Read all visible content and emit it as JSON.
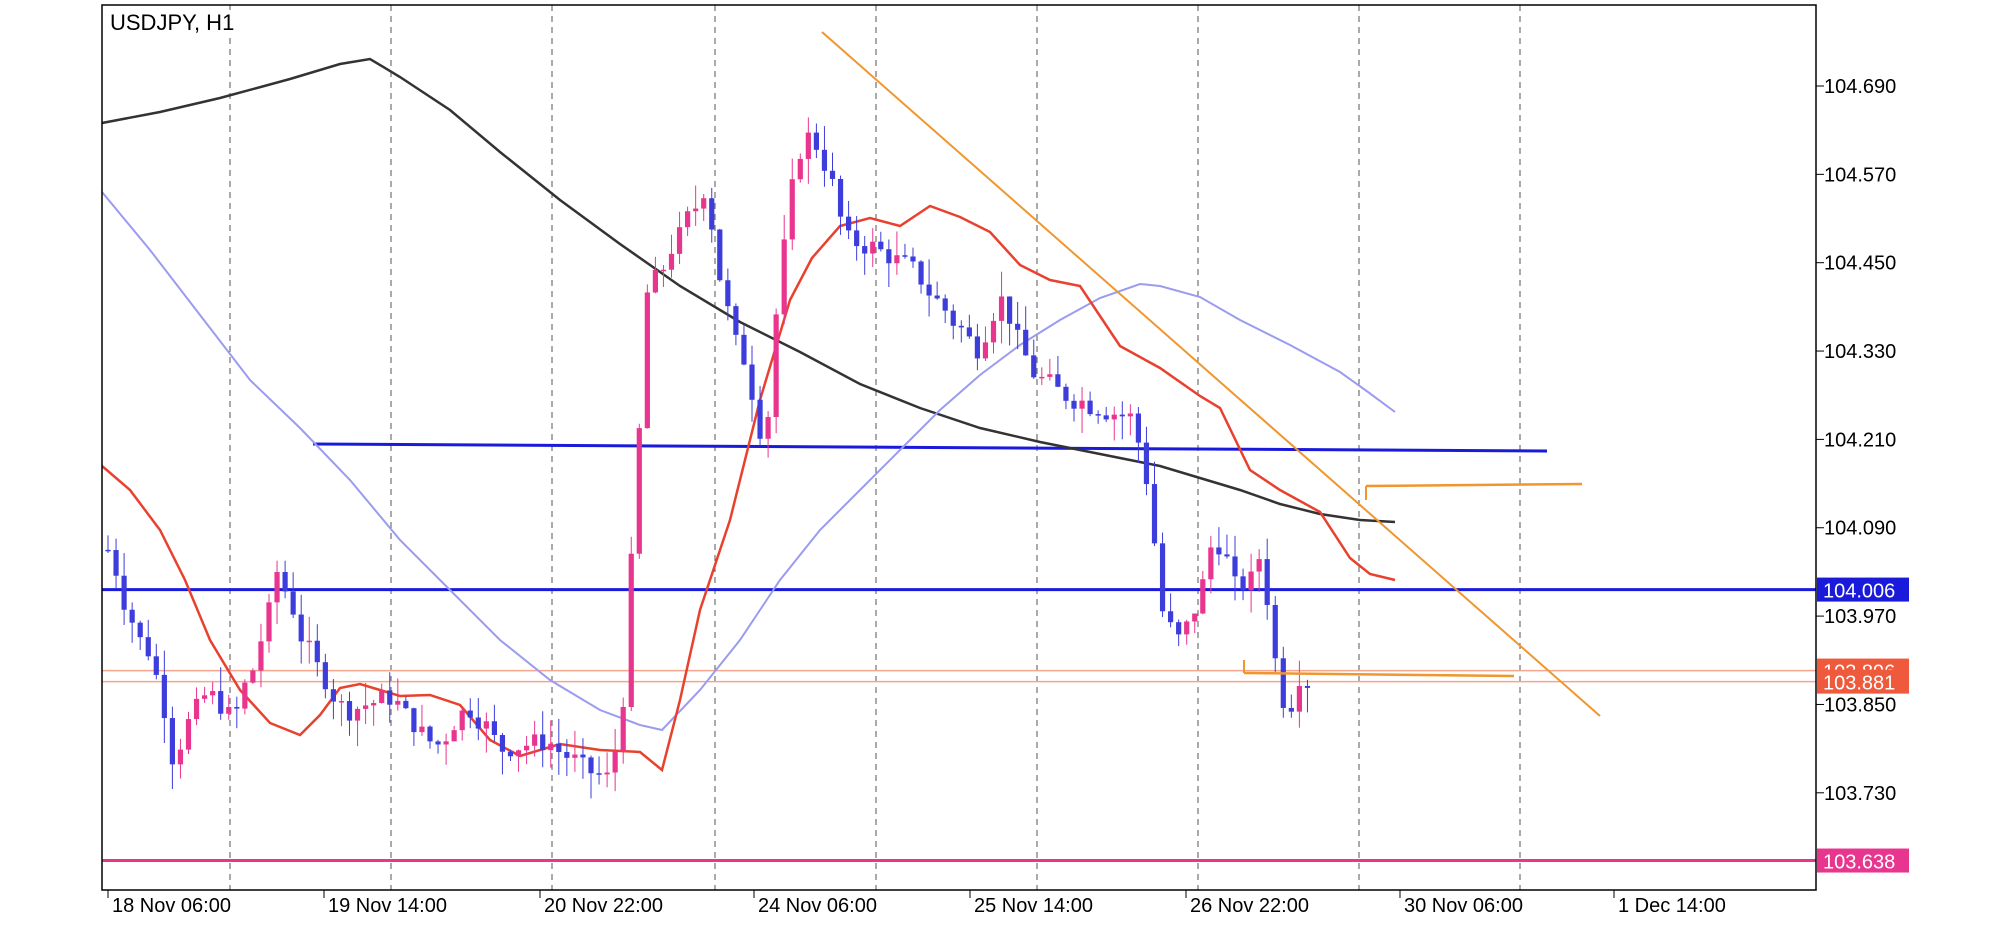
{
  "chart_data": {
    "type": "candlestick",
    "title": "USDJPY, H1",
    "symbol": "USDJPY",
    "timeframe": "H1",
    "y_ticks": [
      104.69,
      104.57,
      104.45,
      104.33,
      104.21,
      104.09,
      103.97,
      103.85,
      103.73
    ],
    "y_tick_labels": [
      "104.690",
      "104.570",
      "104.450",
      "104.330",
      "104.210",
      "104.090",
      "103.970",
      "103.850",
      "103.730"
    ],
    "ylim": [
      103.625,
      104.8
    ],
    "x_tick_labels": [
      "18 Nov 06:00",
      "19 Nov 14:00",
      "20 Nov 22:00",
      "24 Nov 06:00",
      "25 Nov 14:00",
      "26 Nov 22:00",
      "30 Nov 06:00",
      "1 Dec 14:00"
    ],
    "grid": "vertical-dashed",
    "price_labels": [
      {
        "value": 104.006,
        "text": "104.006",
        "color": "#1a1adb",
        "text_color": "#ffffff"
      },
      {
        "value": 103.896,
        "text": "103.896",
        "color": "#f05a3c",
        "text_color": "#ffffff"
      },
      {
        "value": 103.881,
        "text": "103.881",
        "color": "#f05a3c",
        "text_color": "#ffffff"
      },
      {
        "value": 103.638,
        "text": "103.638",
        "color": "#e8368f",
        "text_color": "#ffffff"
      }
    ],
    "horizontal_lines": [
      {
        "value": 104.006,
        "color": "#1a1adb",
        "full_width": true
      },
      {
        "value": 103.638,
        "color": "#e8368f",
        "full_width": true
      },
      {
        "value": 103.896,
        "color": "#f5a58e",
        "full_width": true
      },
      {
        "value": 103.881,
        "color": "#f5a58e",
        "full_width": true
      }
    ],
    "colors": {
      "bull": "#e8368f",
      "bear": "#3d3ddb",
      "ma_fast": "#e8412e",
      "ma_mid": "#9b9bf0",
      "ma_slow": "#333333",
      "trendline": "#f0962e",
      "level": "#1a1adb",
      "grid": "#555555",
      "axis": "#000000"
    }
  }
}
